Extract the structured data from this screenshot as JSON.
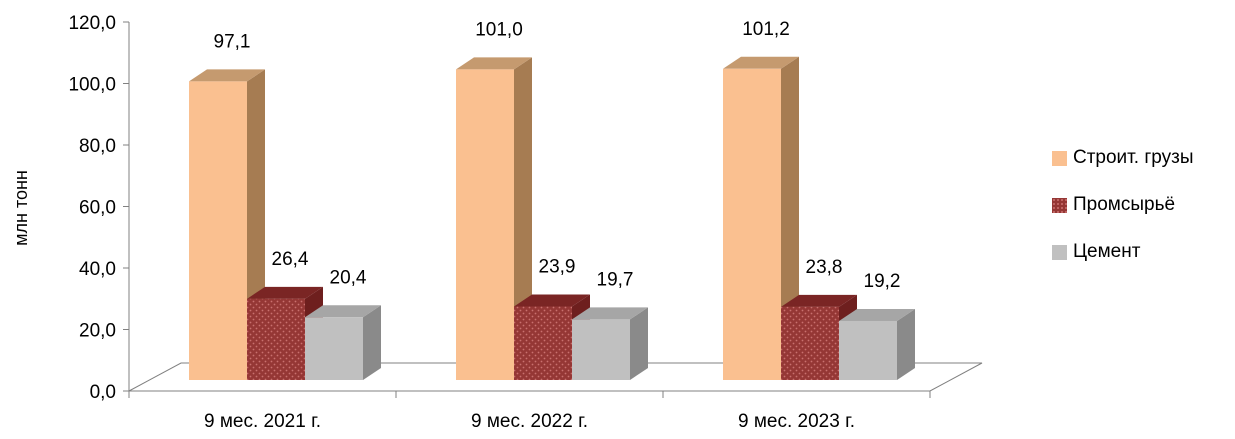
{
  "chart_data": {
    "type": "bar",
    "style": "3d-clustered-column",
    "categories": [
      "9 мес. 2021 г.",
      "9 мес. 2022 г.",
      "9 мес. 2023 г."
    ],
    "series": [
      {
        "name": "Строит. грузы",
        "values": [
          97.1,
          101.0,
          101.2
        ],
        "labels": [
          "97,1",
          "101,0",
          "101,2"
        ],
        "color": "#FAC090",
        "side_color": "#A67C52",
        "top_color": "#C59A6F"
      },
      {
        "name": "Промсырьё",
        "values": [
          26.4,
          23.9,
          23.8
        ],
        "labels": [
          "26,4",
          "23,9",
          "23,8"
        ],
        "color": "#953735",
        "side_color": "#6E1F1E",
        "top_color": "#7A2524",
        "pattern": "dotted"
      },
      {
        "name": "Цемент",
        "values": [
          20.4,
          19.7,
          19.2
        ],
        "labels": [
          "20,4",
          "19,7",
          "19,2"
        ],
        "color": "#C0C0C0",
        "side_color": "#8A8A8A",
        "top_color": "#A6A6A6"
      }
    ],
    "ylabel": "млн тонн",
    "xlabel": "",
    "ylim": [
      0,
      120
    ],
    "yticks": [
      0,
      20,
      40,
      60,
      80,
      100,
      120
    ],
    "ytick_labels": [
      "0,0",
      "20,0",
      "40,0",
      "60,0",
      "80,0",
      "100,0",
      "120,0"
    ],
    "legend_position": "right",
    "grid": false
  }
}
